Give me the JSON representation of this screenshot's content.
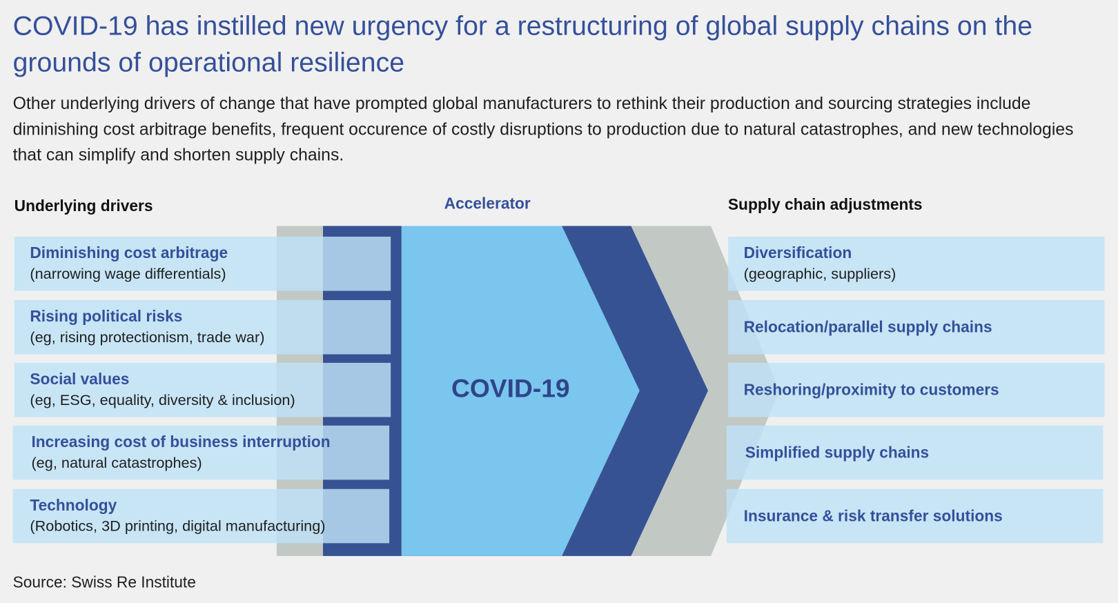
{
  "title": "COVID-19 has instilled new urgency for a restructuring of global supply chains on the grounds of operational resilience",
  "subtitle": "Other underlying drivers of change that have prompted global manufacturers to rethink their production and sourcing strategies include diminishing cost arbitrage benefits, frequent occurence of costly disruptions to production due to natural catastrophes, and new technologies that can simplify and shorten supply chains.",
  "headers": {
    "left": "Underlying drivers",
    "middle": "Accelerator",
    "right": "Supply chain adjustments"
  },
  "drivers": [
    {
      "title": "Diminishing cost arbitrage",
      "detail": "(narrowing wage differentials)"
    },
    {
      "title": "Rising political risks",
      "detail": "(eg, rising protectionism, trade war)"
    },
    {
      "title": "Social values",
      "detail": "(eg, ESG, equality, diversity & inclusion)"
    },
    {
      "title": "Increasing cost of business interruption",
      "detail": "(eg, natural catastrophes)"
    },
    {
      "title": "Technology",
      "detail": "(Robotics, 3D printing, digital manufacturing)"
    }
  ],
  "accelerator": "COVID-19",
  "adjustments": [
    {
      "title": "Diversification",
      "detail": "(geographic, suppliers)"
    },
    {
      "title": "Relocation/parallel supply chains"
    },
    {
      "title": "Reshoring/proximity to customers"
    },
    {
      "title": "Simplified supply chains"
    },
    {
      "title": "Insurance & risk transfer solutions"
    }
  ],
  "source": "Source: Swiss Re Institute",
  "colors": {
    "title": "#34509a",
    "dark_blue": "#375293",
    "light_blue": "#7ac6ee",
    "gray": "#c2c9c5",
    "box": "#bee2f6"
  }
}
